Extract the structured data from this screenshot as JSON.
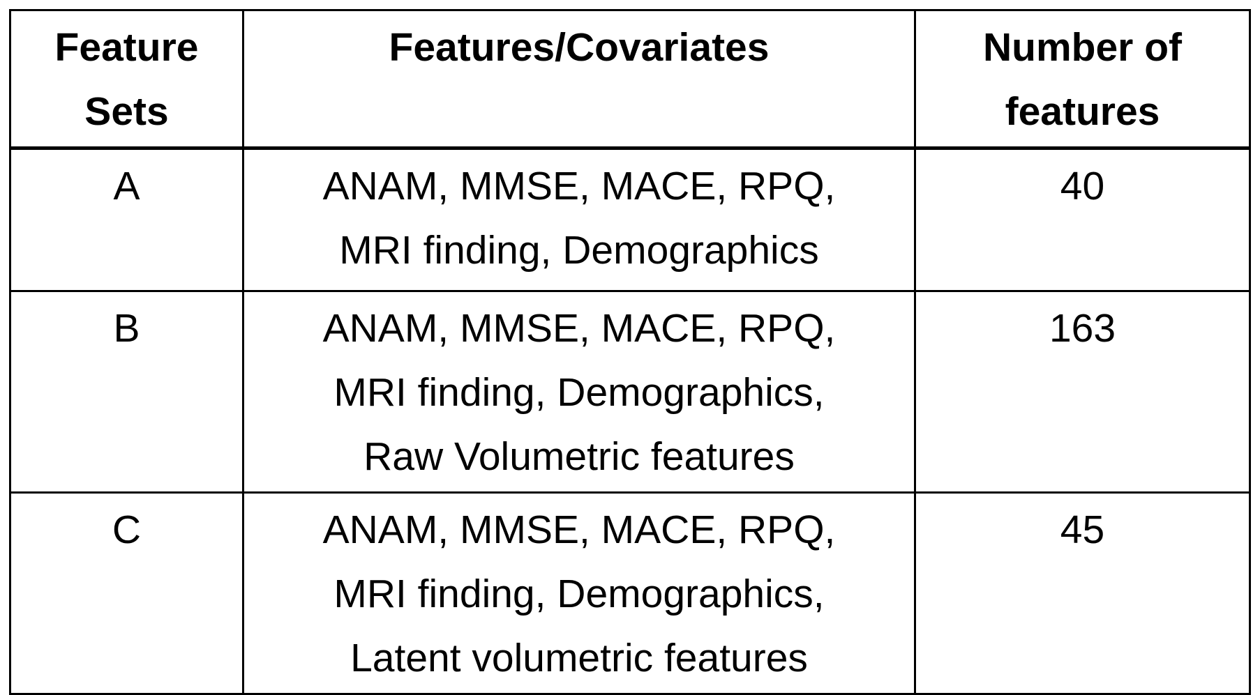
{
  "colors": {
    "border": "#000000",
    "text": "#000000",
    "background": "#ffffff"
  },
  "chart_data": {
    "type": "table",
    "columns": [
      {
        "label": [
          "Feature",
          "Sets"
        ]
      },
      {
        "label": [
          "Features/Covariates"
        ]
      },
      {
        "label": [
          "Number of",
          "features"
        ]
      }
    ],
    "rows": [
      {
        "feature_set": "A",
        "features": [
          "ANAM, MMSE, MACE, RPQ,",
          "MRI finding, Demographics"
        ],
        "num_features": "40"
      },
      {
        "feature_set": "B",
        "features": [
          "ANAM, MMSE, MACE, RPQ,",
          "MRI finding, Demographics,",
          "Raw Volumetric features"
        ],
        "num_features": "163"
      },
      {
        "feature_set": "C",
        "features": [
          "ANAM, MMSE, MACE, RPQ,",
          "MRI finding, Demographics,",
          "Latent volumetric features"
        ],
        "num_features": "45"
      }
    ]
  }
}
